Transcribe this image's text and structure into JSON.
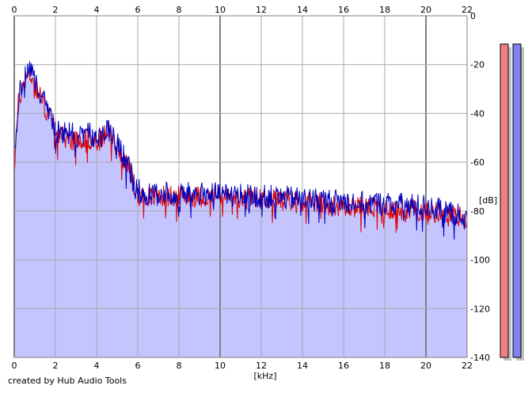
{
  "chart_data": {
    "type": "area",
    "xlabel": "[kHz]",
    "ylabel": "[dB]",
    "xlim": [
      0,
      22
    ],
    "ylim": [
      -140,
      0
    ],
    "x_ticks": [
      "0",
      "2",
      "4",
      "6",
      "8",
      "10",
      "12",
      "14",
      "16",
      "18",
      "20",
      "22"
    ],
    "y_ticks": [
      "0",
      "-20",
      "-40",
      "-60",
      "-80",
      "-100",
      "-120",
      "-140"
    ],
    "grid": true,
    "series": [
      {
        "color": "#e00000",
        "envelope": [
          [
            0,
            -62
          ],
          [
            0.2,
            -36
          ],
          [
            0.5,
            -26
          ],
          [
            0.8,
            -24
          ],
          [
            1.1,
            -30
          ],
          [
            1.5,
            -38
          ],
          [
            1.8,
            -42
          ],
          [
            2.0,
            -48
          ],
          [
            2.5,
            -50
          ],
          [
            3.0,
            -51
          ],
          [
            3.5,
            -50
          ],
          [
            4.0,
            -52
          ],
          [
            4.3,
            -50
          ],
          [
            4.6,
            -47
          ],
          [
            4.9,
            -52
          ],
          [
            5.3,
            -58
          ],
          [
            5.6,
            -64
          ],
          [
            5.9,
            -72
          ],
          [
            6.3,
            -74
          ],
          [
            8,
            -74
          ],
          [
            10,
            -74
          ],
          [
            12,
            -75
          ],
          [
            14,
            -76
          ],
          [
            16,
            -78
          ],
          [
            18,
            -79
          ],
          [
            20,
            -80
          ],
          [
            21,
            -81
          ],
          [
            22,
            -83
          ]
        ],
        "noise_db": 4.5
      },
      {
        "color": "#0000c0",
        "envelope": [
          [
            0,
            -58
          ],
          [
            0.2,
            -34
          ],
          [
            0.5,
            -24
          ],
          [
            0.8,
            -23
          ],
          [
            1.1,
            -29
          ],
          [
            1.5,
            -36
          ],
          [
            1.8,
            -42
          ],
          [
            2.0,
            -47
          ],
          [
            2.5,
            -48
          ],
          [
            3.0,
            -49
          ],
          [
            3.5,
            -48
          ],
          [
            4.0,
            -50
          ],
          [
            4.3,
            -49
          ],
          [
            4.6,
            -46
          ],
          [
            4.9,
            -51
          ],
          [
            5.3,
            -57
          ],
          [
            5.6,
            -63
          ],
          [
            5.9,
            -71
          ],
          [
            6.3,
            -73
          ],
          [
            8,
            -73
          ],
          [
            10,
            -73
          ],
          [
            12,
            -74
          ],
          [
            14,
            -75
          ],
          [
            16,
            -76
          ],
          [
            18,
            -77
          ],
          [
            20,
            -78
          ],
          [
            21,
            -80
          ],
          [
            22,
            -83
          ]
        ],
        "noise_db": 5
      }
    ],
    "area_fill": "#c4c4ff",
    "level_meters": [
      {
        "channel": "left",
        "color": "#f08080",
        "value_db": -6
      },
      {
        "channel": "right",
        "color": "#8080f0",
        "value_db": -6
      }
    ]
  },
  "footer": {
    "credit": "created by Hub Audio Tools"
  }
}
